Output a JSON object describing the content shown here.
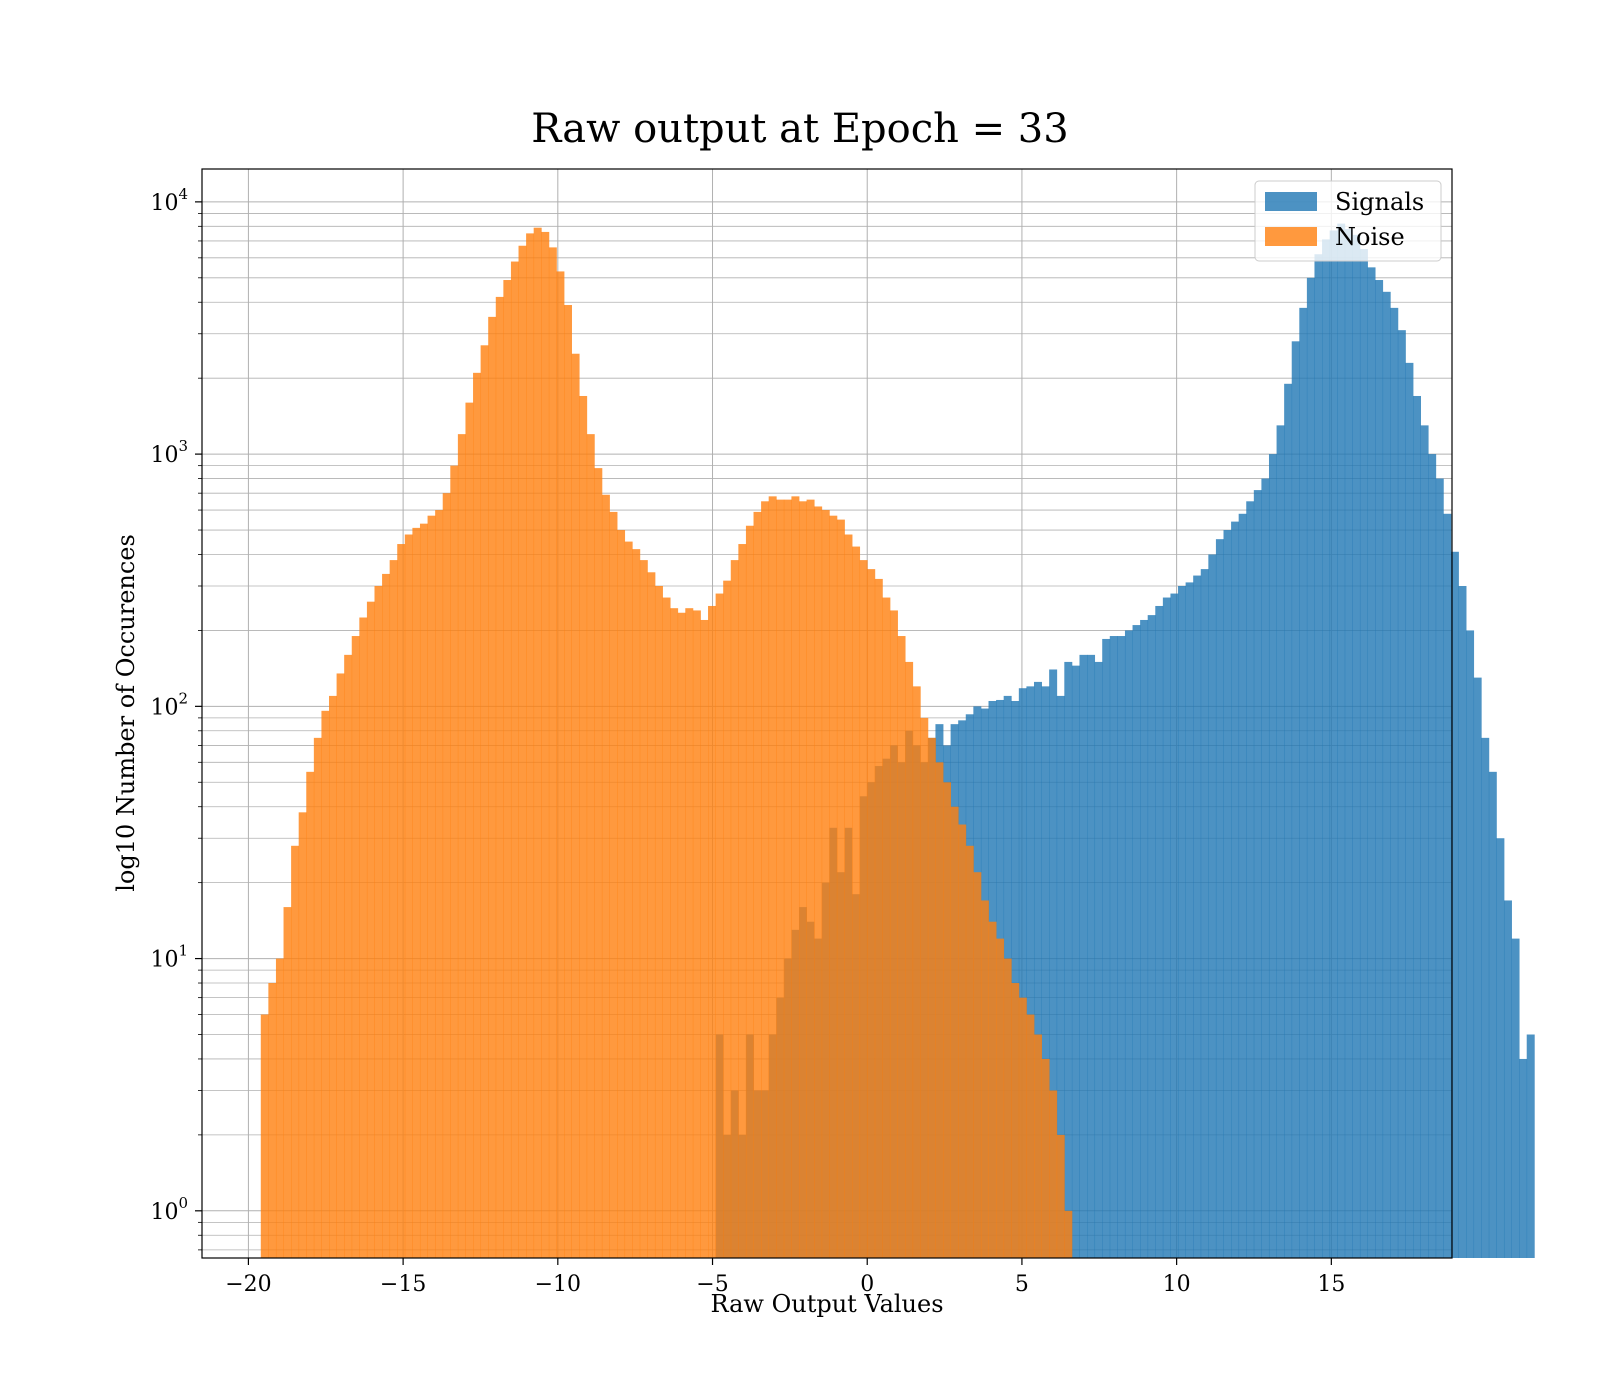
{
  "chart_data": {
    "type": "bar",
    "title": "Raw output at Epoch = 33",
    "xlabel": "Raw Output Values",
    "ylabel": "log10 Number of Occurences",
    "xlim": [
      -21.5,
      18.9
    ],
    "ylim": [
      0.65,
      13500
    ],
    "y_scale": "log",
    "grid": true,
    "legend_position": "top-right",
    "x_ticks": [
      -20,
      -15,
      -10,
      -5,
      0,
      5,
      10,
      15
    ],
    "x_tick_labels": [
      "−20",
      "−15",
      "−10",
      "−5",
      "0",
      "5",
      "10",
      "15"
    ],
    "y_ticks": [
      1,
      10,
      100,
      1000,
      10000
    ],
    "y_tick_bases": [
      "10",
      "10",
      "10",
      "10",
      "10"
    ],
    "y_tick_exponents": [
      "0",
      "1",
      "2",
      "3",
      "4"
    ],
    "bin_start": -19.6,
    "bin_width": 0.245,
    "series": [
      {
        "name": "Signals",
        "color": "#1f77b4",
        "opacity": 0.8,
        "bin_start": -4.9,
        "bin_width": 0.245,
        "values": [
          5,
          2,
          3,
          2,
          5,
          3,
          3,
          5,
          7,
          10,
          13,
          16,
          14,
          12,
          20,
          33,
          22,
          33,
          18,
          44,
          50,
          58,
          62,
          70,
          60,
          80,
          70,
          60,
          75,
          85,
          70,
          85,
          88,
          93,
          100,
          98,
          105,
          106,
          110,
          105,
          118,
          120,
          125,
          120,
          140,
          110,
          150,
          145,
          160,
          160,
          150,
          185,
          190,
          190,
          200,
          210,
          220,
          230,
          250,
          270,
          280,
          300,
          310,
          330,
          350,
          400,
          460,
          500,
          540,
          580,
          650,
          720,
          800,
          1000,
          1300,
          1900,
          2800,
          3800,
          5000,
          6200,
          7100,
          7700,
          8200,
          7800,
          7400,
          6500,
          5500,
          4900,
          4400,
          3800,
          3100,
          2300,
          1700,
          1300,
          1000,
          800,
          580,
          410,
          300,
          200,
          130,
          75,
          55,
          30,
          17,
          12,
          4,
          5
        ]
      },
      {
        "name": "Noise",
        "color": "#ff7f0e",
        "opacity": 0.8,
        "bin_start": -19.6,
        "bin_width": 0.245,
        "values": [
          6,
          8,
          10,
          16,
          28,
          38,
          55,
          75,
          96,
          110,
          135,
          160,
          190,
          225,
          260,
          300,
          335,
          380,
          440,
          480,
          510,
          530,
          570,
          600,
          700,
          900,
          1200,
          1600,
          2100,
          2700,
          3500,
          4200,
          4900,
          5800,
          6700,
          7500,
          7900,
          7600,
          6600,
          5300,
          3900,
          2500,
          1700,
          1200,
          880,
          690,
          590,
          500,
          450,
          420,
          380,
          340,
          300,
          270,
          245,
          235,
          245,
          240,
          220,
          250,
          280,
          315,
          380,
          440,
          520,
          590,
          650,
          680,
          660,
          660,
          680,
          650,
          660,
          620,
          600,
          570,
          550,
          480,
          430,
          380,
          350,
          320,
          270,
          240,
          190,
          150,
          120,
          90,
          75,
          60,
          50,
          40,
          34,
          28,
          22,
          17,
          14,
          12,
          10,
          8,
          7,
          6,
          5,
          4,
          3,
          2,
          1,
          0.6
        ]
      }
    ]
  }
}
